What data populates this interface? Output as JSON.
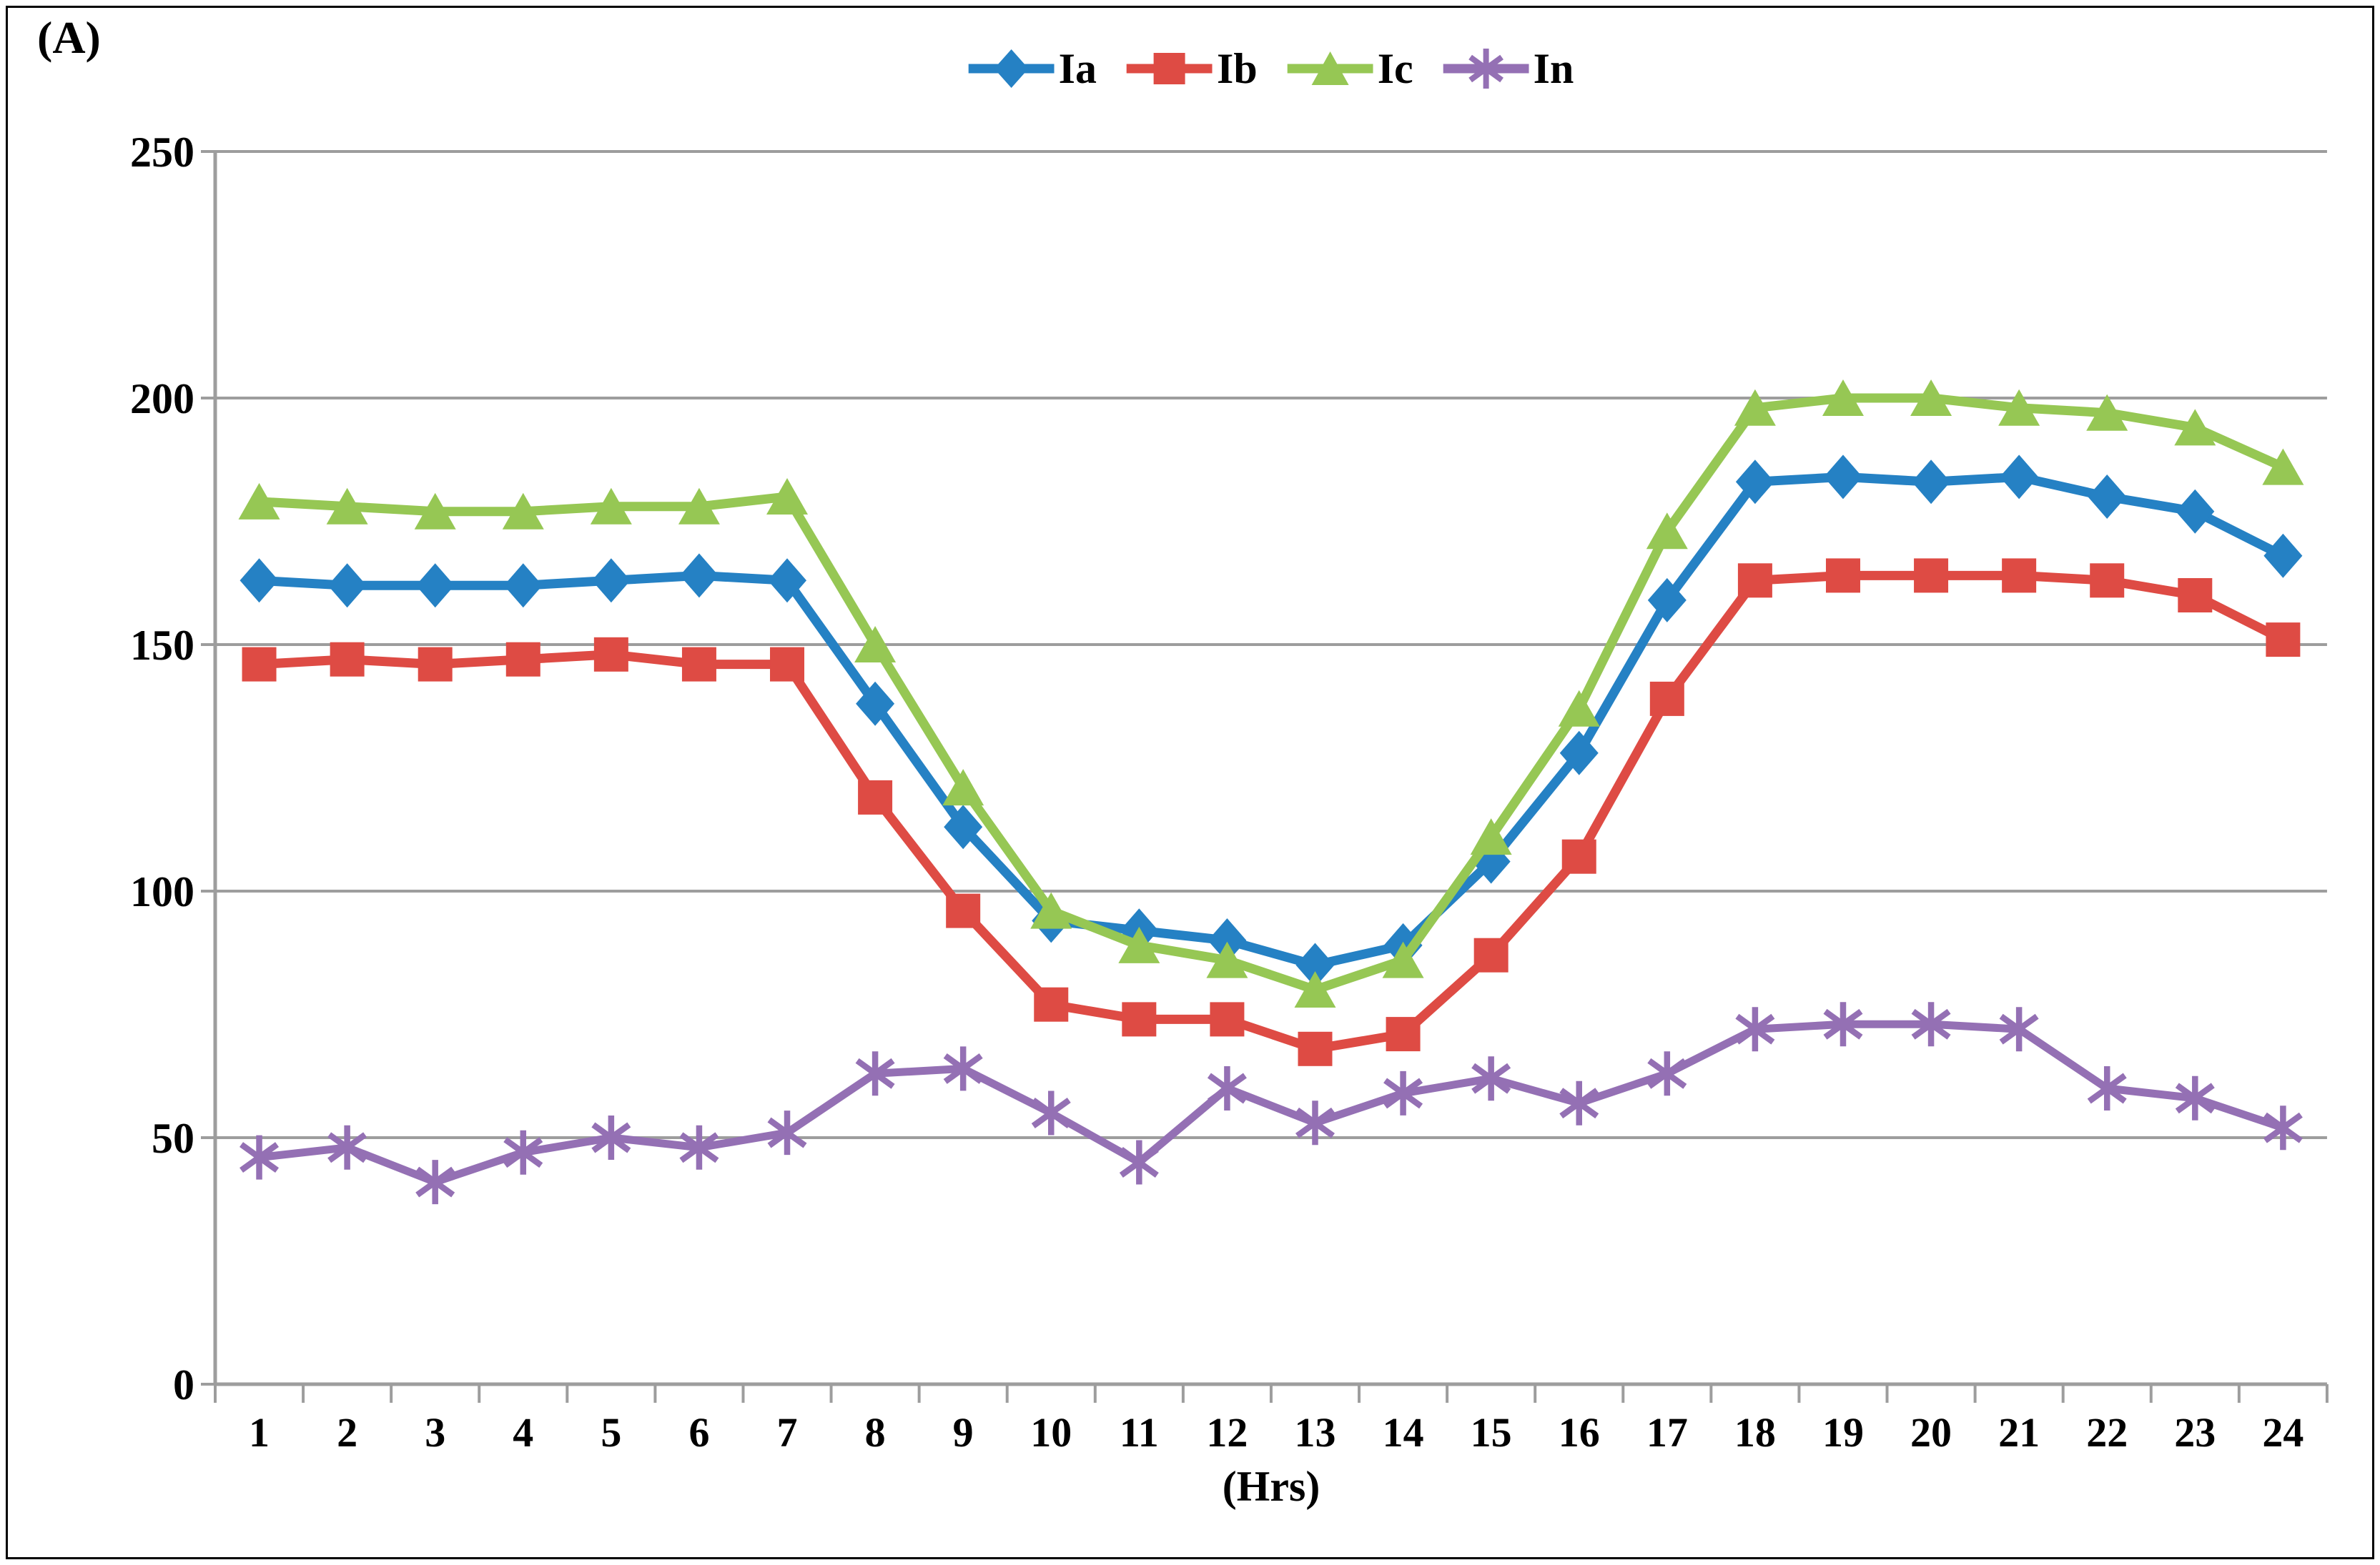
{
  "chart_data": {
    "type": "line",
    "title": "",
    "ylabel": "(A)",
    "xlabel": "(Hrs)",
    "x": [
      1,
      2,
      3,
      4,
      5,
      6,
      7,
      8,
      9,
      10,
      11,
      12,
      13,
      14,
      15,
      16,
      17,
      18,
      19,
      20,
      21,
      22,
      23,
      24
    ],
    "y_ticks": [
      0,
      50,
      100,
      150,
      200,
      250
    ],
    "ylim": [
      0,
      250
    ],
    "grid": true,
    "legend_position": "top-center",
    "axis_color": "#9d9d9d",
    "series": [
      {
        "name": "Ia",
        "marker": "diamond",
        "color": "#2581c4",
        "values": [
          163,
          162,
          162,
          162,
          163,
          164,
          163,
          138,
          113,
          94,
          92,
          90,
          85,
          89,
          106,
          128,
          159,
          183,
          184,
          183,
          184,
          180,
          177,
          168
        ]
      },
      {
        "name": "Ib",
        "marker": "square",
        "color": "#de4b44",
        "values": [
          146,
          147,
          146,
          147,
          148,
          146,
          146,
          119,
          96,
          77,
          74,
          74,
          68,
          71,
          87,
          107,
          139,
          163,
          164,
          164,
          164,
          163,
          160,
          151
        ]
      },
      {
        "name": "Ic",
        "marker": "triangle",
        "color": "#96c754",
        "values": [
          179,
          178,
          177,
          177,
          178,
          178,
          180,
          150,
          121,
          96,
          89,
          86,
          80,
          86,
          111,
          137,
          173,
          198,
          200,
          200,
          198,
          197,
          194,
          186
        ]
      },
      {
        "name": "In",
        "marker": "asterisk",
        "color": "#9470b4",
        "values": [
          46,
          48,
          41,
          47,
          50,
          48,
          51,
          63,
          64,
          55,
          45,
          60,
          53,
          59,
          62,
          57,
          63,
          72,
          73,
          73,
          72,
          60,
          58,
          52
        ]
      }
    ]
  }
}
